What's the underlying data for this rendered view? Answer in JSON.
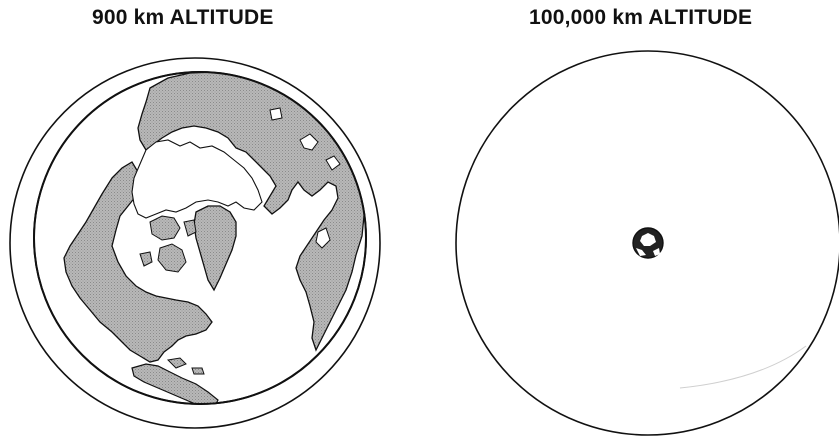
{
  "panels": [
    {
      "title": "900 km ALTITUDE"
    },
    {
      "title": "100,000 km ALTITUDE"
    }
  ],
  "colors": {
    "land": "#b3b3b3",
    "ocean": "#ffffff",
    "ice": "#ffffff",
    "outline": "#111111"
  }
}
